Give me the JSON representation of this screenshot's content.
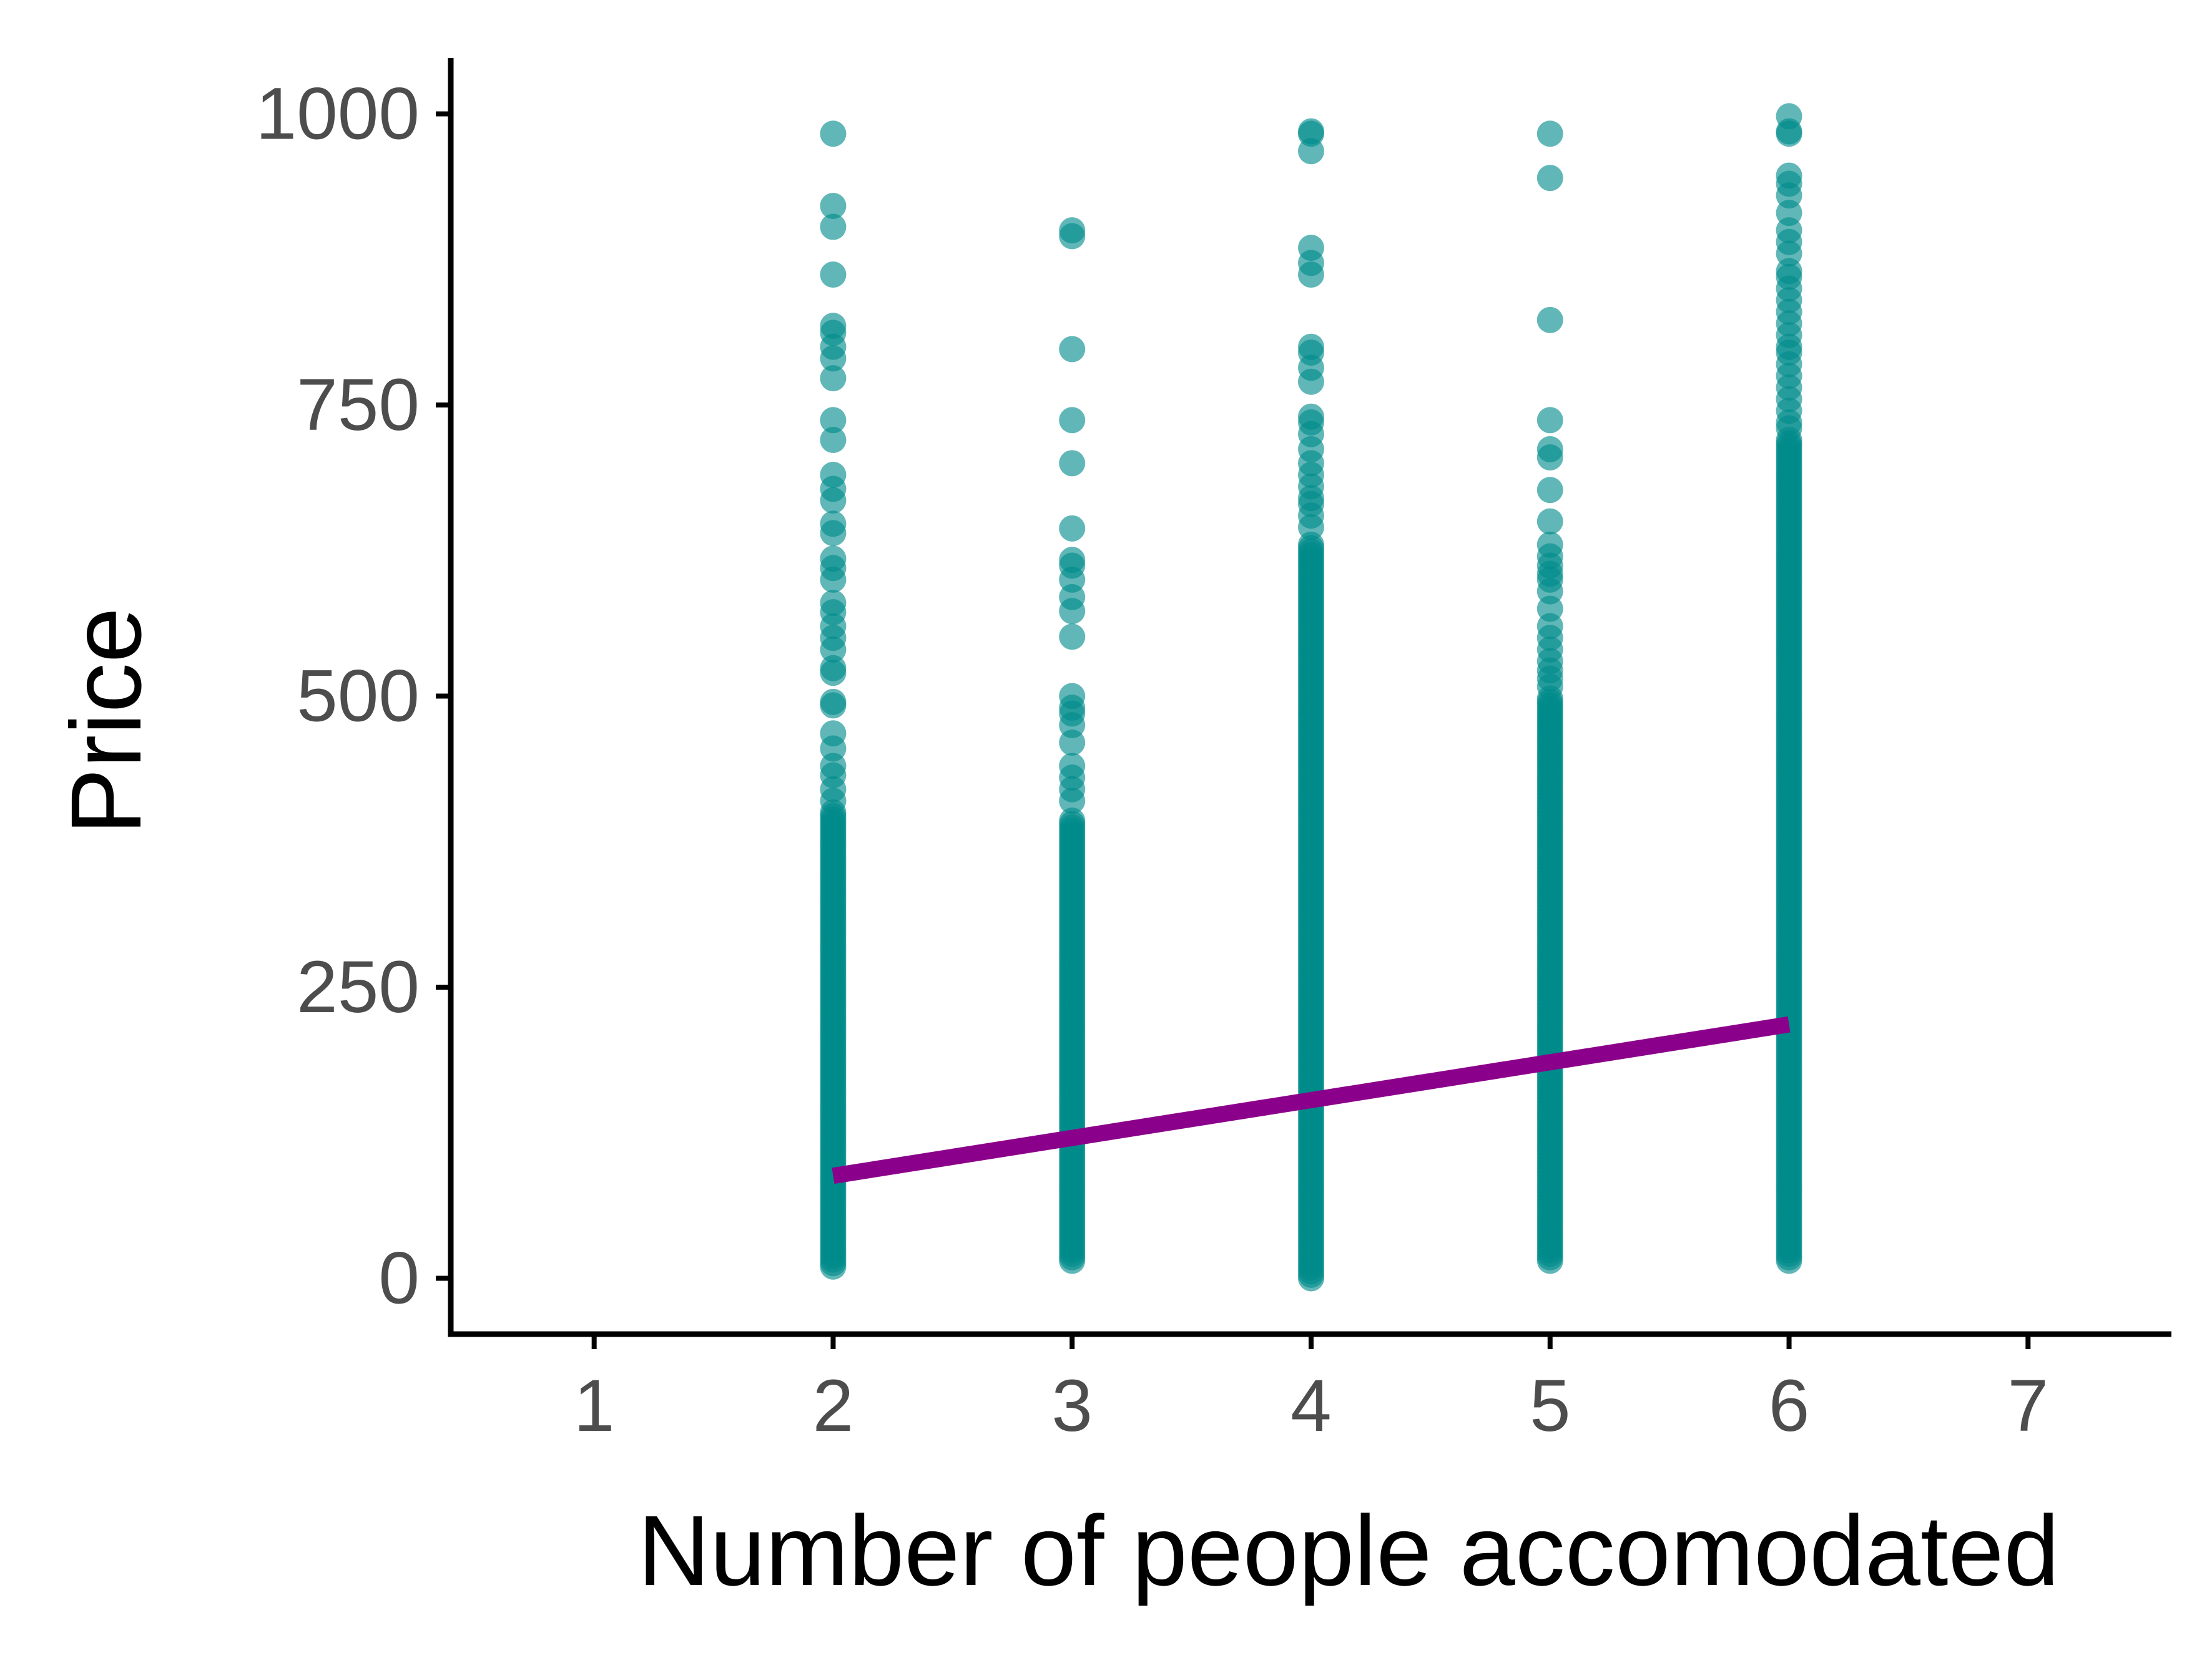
{
  "chart_data": {
    "type": "scatter",
    "title": "",
    "xlabel": "Number of people accomodated",
    "ylabel": "Price",
    "xlim": [
      0.4,
      7.6
    ],
    "ylim": [
      -48,
      1048
    ],
    "xticks": [
      1,
      2,
      3,
      4,
      5,
      6,
      7
    ],
    "yticks": [
      0,
      250,
      500,
      750,
      1000
    ],
    "grid": false,
    "legend": "none",
    "point_color": "#008B8B",
    "line_color": "#8B008B",
    "columns": [
      {
        "x": 2,
        "dense_min": 10,
        "dense_max": 400,
        "outliers": [
          983,
          921,
          903,
          862,
          818,
          812,
          800,
          790,
          773,
          737,
          720,
          690,
          678,
          668,
          648,
          640,
          618,
          610,
          600,
          580,
          572,
          560,
          550,
          540,
          524,
          520,
          495,
          492,
          468,
          455,
          440,
          432,
          420,
          410
        ]
      },
      {
        "x": 3,
        "dense_min": 15,
        "dense_max": 395,
        "outliers": [
          900,
          895,
          798,
          737,
          700,
          644,
          617,
          612,
          600,
          585,
          573,
          551,
          500,
          490,
          485,
          475,
          460,
          440,
          430,
          420,
          410
        ]
      },
      {
        "x": 4,
        "dense_min": 0,
        "dense_max": 630,
        "outliers": [
          985,
          983,
          968,
          885,
          872,
          862,
          800,
          795,
          782,
          770,
          740,
          735,
          725,
          712,
          700,
          690,
          680,
          670,
          665,
          655,
          645
        ]
      },
      {
        "x": 5,
        "dense_min": 15,
        "dense_max": 500,
        "outliers": [
          983,
          945,
          823,
          737,
          712,
          705,
          677,
          650,
          630,
          620,
          612,
          605,
          600,
          590,
          575,
          560,
          550,
          540,
          530,
          522,
          515,
          508
        ]
      },
      {
        "x": 6,
        "dense_min": 15,
        "dense_max": 720,
        "outliers": [
          998,
          985,
          983,
          947,
          940,
          930,
          915,
          900,
          890,
          880,
          865,
          860,
          850,
          840,
          830,
          820,
          810,
          800,
          795,
          785,
          775,
          765,
          755,
          745,
          735,
          730
        ]
      }
    ],
    "fit_line": {
      "x": [
        2,
        6
      ],
      "y": [
        88,
        218
      ]
    }
  }
}
